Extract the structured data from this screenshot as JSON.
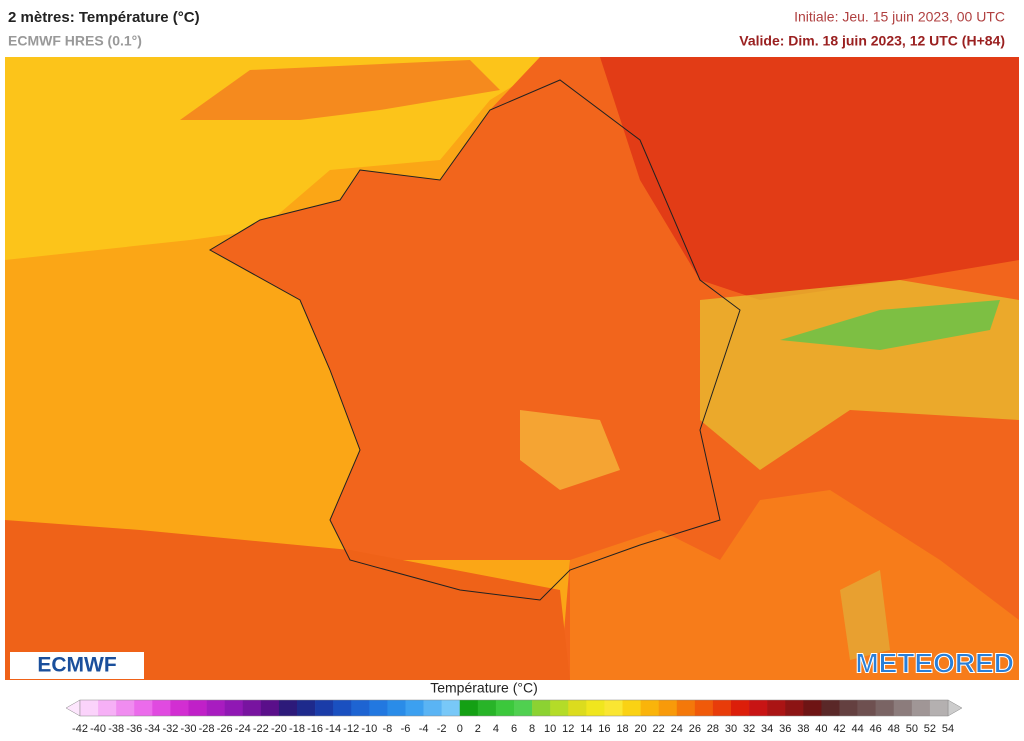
{
  "header": {
    "title": "2 mètres: Température (°C)",
    "model": "ECMWF HRES (0.1°)",
    "initial": "Initiale: Jeu. 15 juin 2023, 00 UTC",
    "valid": "Valide: Dim. 18 juin 2023, 12 UTC (H+84)"
  },
  "logos": {
    "left": "ECMWF",
    "right": "METEORED"
  },
  "legend": {
    "title": "Température (°C)",
    "ticks": [
      -42,
      -40,
      -38,
      -36,
      -34,
      -32,
      -30,
      -28,
      -26,
      -24,
      -22,
      -20,
      -18,
      -16,
      -14,
      -12,
      -10,
      -8,
      -6,
      -4,
      -2,
      0,
      2,
      4,
      6,
      8,
      10,
      12,
      14,
      16,
      18,
      20,
      22,
      24,
      26,
      28,
      30,
      32,
      34,
      36,
      38,
      40,
      42,
      44,
      46,
      48,
      50,
      52,
      54
    ],
    "under_color": "#fde6fd",
    "over_color": "#cccccc",
    "colors": [
      "#fbd3fb",
      "#f6b0f6",
      "#f08cf0",
      "#eb6beb",
      "#e04ae0",
      "#d22ed2",
      "#c020c8",
      "#a81cc0",
      "#9018b4",
      "#7814a0",
      "#5a0f8a",
      "#2d1a7a",
      "#1e2a8c",
      "#1a3ca8",
      "#1a50c0",
      "#1e64d2",
      "#2278e0",
      "#2a8ce8",
      "#3ca0f0",
      "#5ab4f4",
      "#78c8f8",
      "#14a014",
      "#28b428",
      "#3cc83c",
      "#50d050",
      "#8cd232",
      "#b4dc28",
      "#dcdc1e",
      "#f0e61e",
      "#fae632",
      "#fad214",
      "#fab40a",
      "#f89a0a",
      "#f4780a",
      "#f05a0a",
      "#e83c0a",
      "#dc1e0a",
      "#c81414",
      "#aa1414",
      "#8c1414",
      "#6e1414",
      "#5a2828",
      "#644040",
      "#6e5050",
      "#7a6464",
      "#8c7c7c",
      "#a09696",
      "#b4b0b0"
    ]
  }
}
